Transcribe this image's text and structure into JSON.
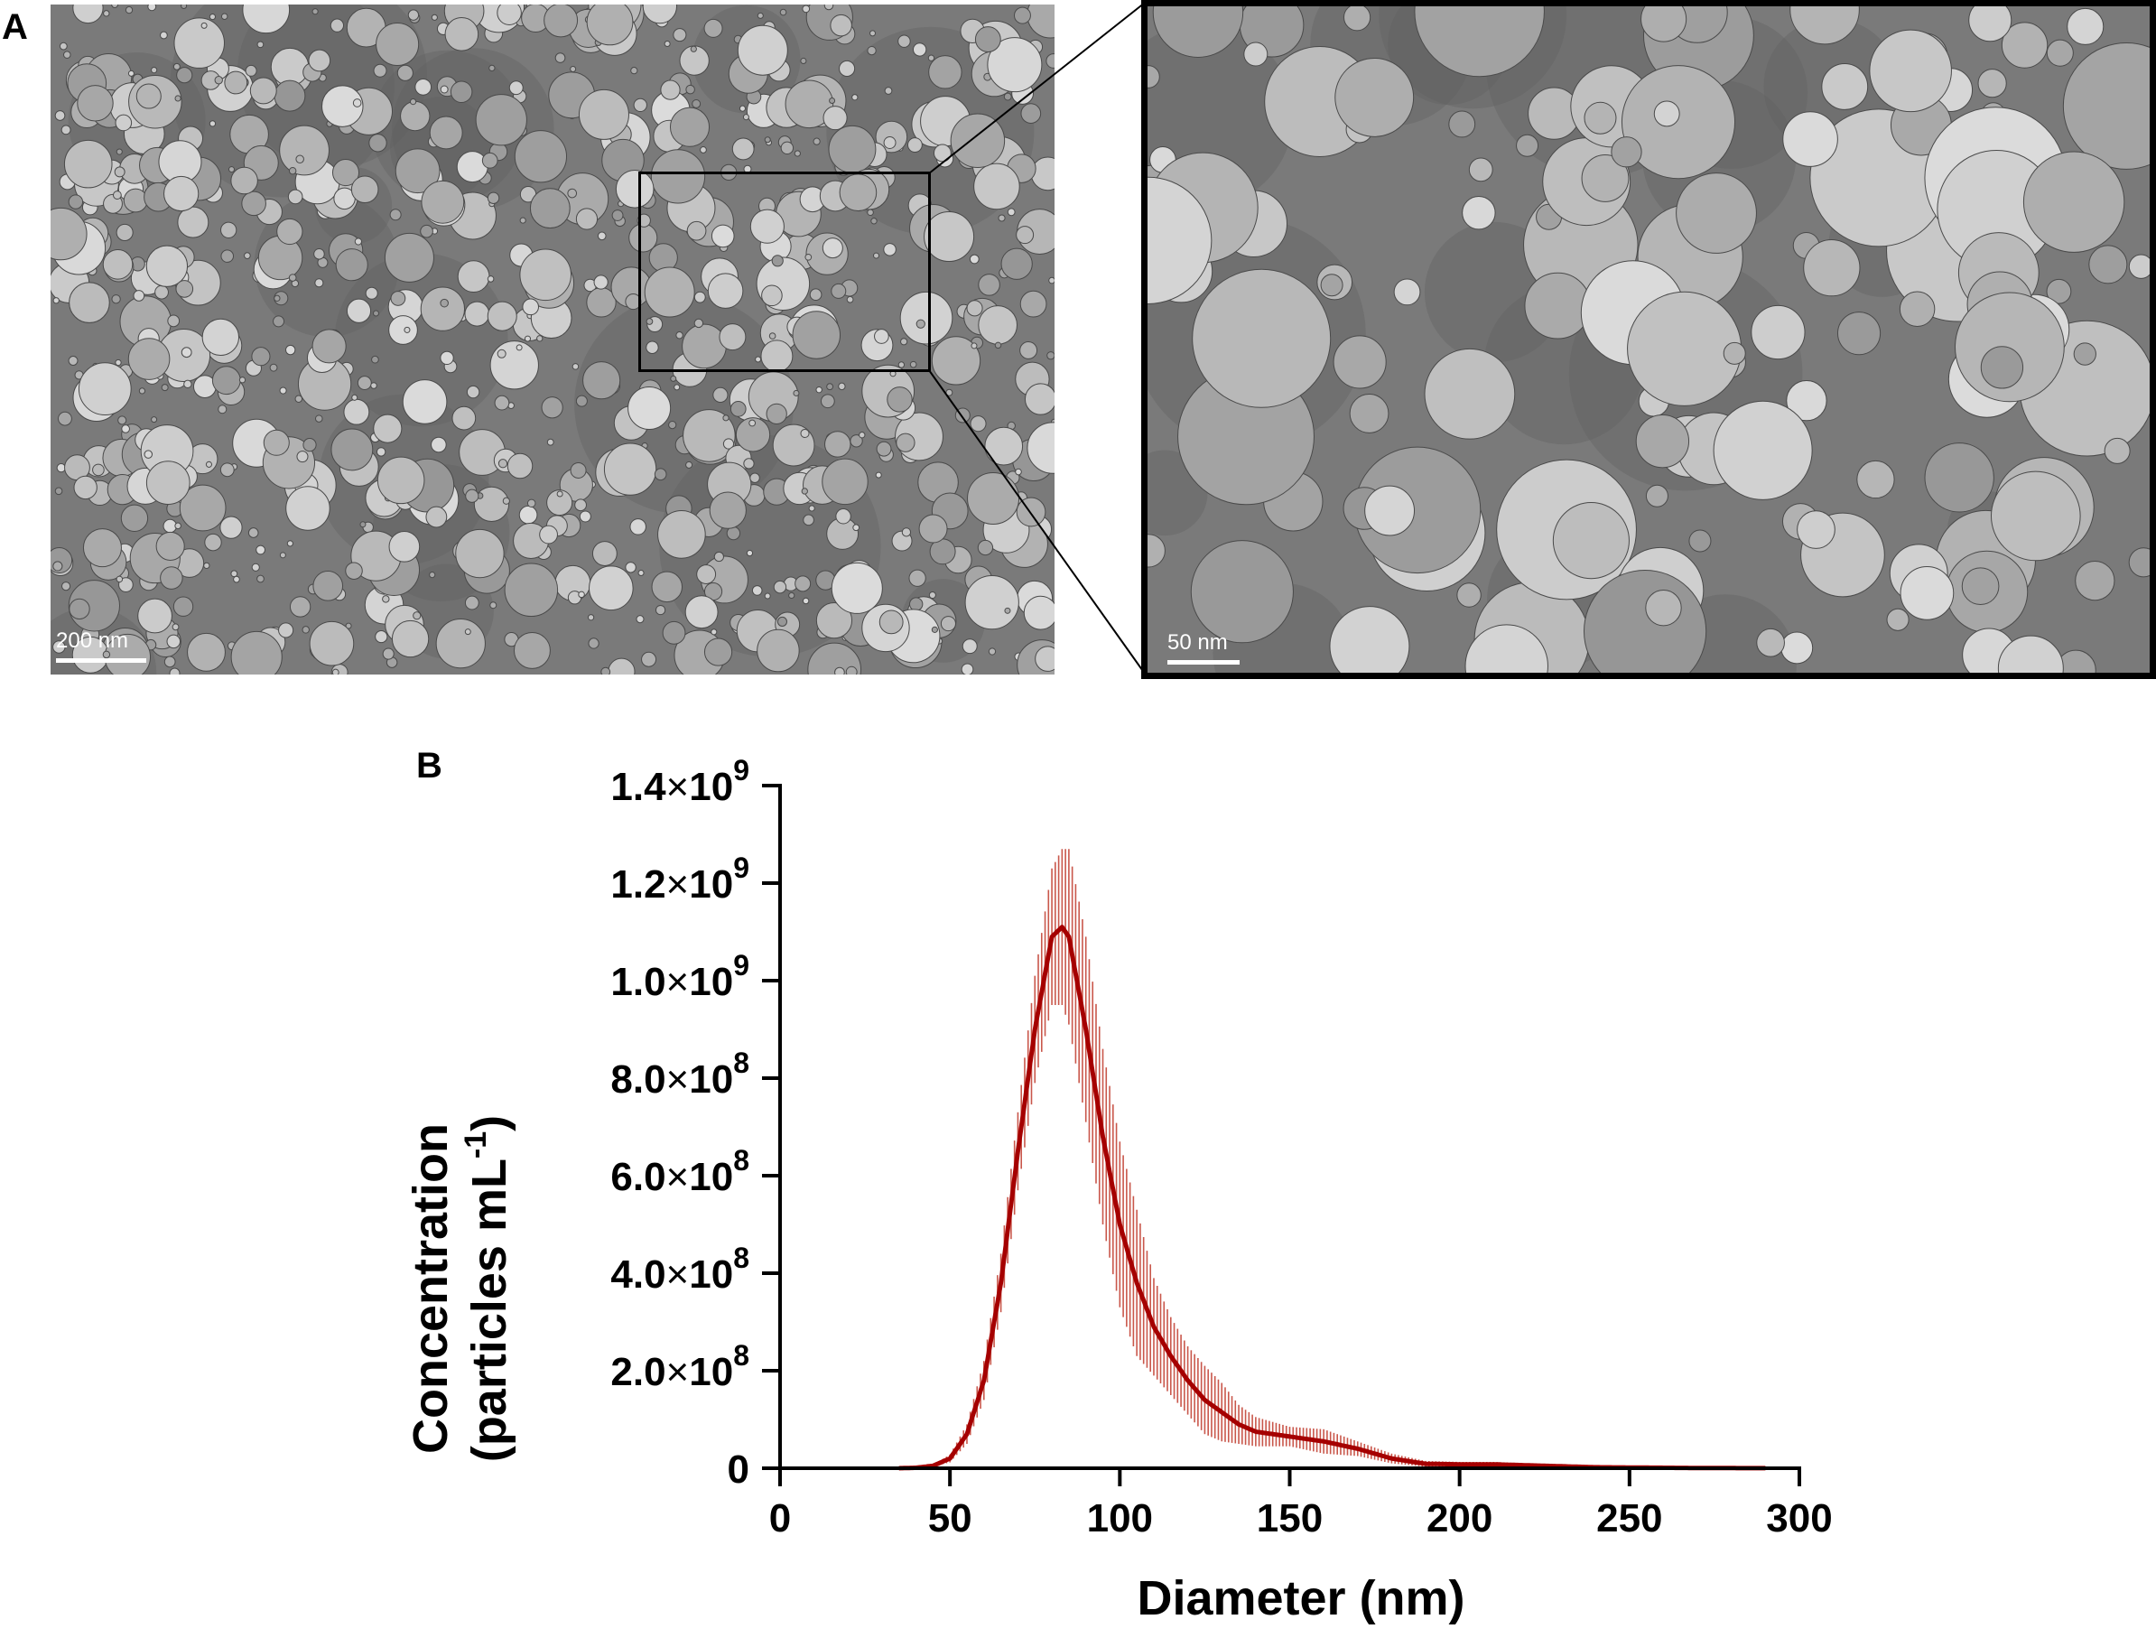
{
  "panels": {
    "a": {
      "label": "A",
      "overview_scalebar": "200 nm",
      "zoom_scalebar": "50 nm"
    },
    "b": {
      "label": "B"
    }
  },
  "chart_data": {
    "type": "line",
    "xlabel": "Diameter (nm)",
    "ylabel_line1": "Concentration",
    "ylabel_line2": "(particles mL",
    "ylabel_sup": "-1",
    "ylabel_close": ")",
    "xlim": [
      0,
      300
    ],
    "ylim": [
      0,
      1400000000
    ],
    "xticks": [
      0,
      50,
      100,
      150,
      200,
      250,
      300
    ],
    "yticks": [
      {
        "value": 0,
        "mantissa": "0",
        "exp": ""
      },
      {
        "value": 200000000,
        "mantissa": "2.0",
        "exp": "8"
      },
      {
        "value": 400000000,
        "mantissa": "4.0",
        "exp": "8"
      },
      {
        "value": 600000000,
        "mantissa": "6.0",
        "exp": "8"
      },
      {
        "value": 800000000,
        "mantissa": "8.0",
        "exp": "8"
      },
      {
        "value": 1000000000,
        "mantissa": "1.0",
        "exp": "9"
      },
      {
        "value": 1200000000,
        "mantissa": "1.2",
        "exp": "9"
      },
      {
        "value": 1400000000,
        "mantissa": "1.4",
        "exp": "9"
      }
    ],
    "times_symbol": "×",
    "ten": "10",
    "colors": {
      "line": "#a50000",
      "error": "#c0392b"
    },
    "series": [
      {
        "x": [
          35,
          40,
          45,
          50,
          55,
          60,
          65,
          70,
          75,
          80,
          83,
          85,
          90,
          95,
          100,
          105,
          110,
          115,
          120,
          125,
          130,
          135,
          140,
          150,
          160,
          170,
          180,
          190,
          200,
          210,
          220,
          230,
          240,
          250,
          260,
          270,
          280,
          290
        ],
        "y": [
          0,
          1000000,
          5000000,
          20000000,
          70000000,
          180000000,
          380000000,
          650000000,
          900000000,
          1090000000,
          1110000000,
          1090000000,
          900000000,
          680000000,
          500000000,
          380000000,
          290000000,
          230000000,
          180000000,
          140000000,
          115000000,
          90000000,
          75000000,
          65000000,
          55000000,
          40000000,
          20000000,
          9000000,
          8000000,
          8000000,
          6000000,
          4000000,
          2000000,
          1500000,
          1000000,
          500000,
          300000,
          100000
        ],
        "err": [
          0,
          500000,
          2000000,
          8000000,
          20000000,
          40000000,
          60000000,
          80000000,
          110000000,
          140000000,
          160000000,
          180000000,
          190000000,
          180000000,
          170000000,
          150000000,
          100000000,
          80000000,
          70000000,
          70000000,
          60000000,
          40000000,
          30000000,
          20000000,
          25000000,
          15000000,
          10000000,
          6000000,
          5000000,
          5000000,
          4000000,
          3000000,
          2000000,
          1000000,
          800000,
          500000,
          300000,
          100000
        ]
      }
    ]
  }
}
